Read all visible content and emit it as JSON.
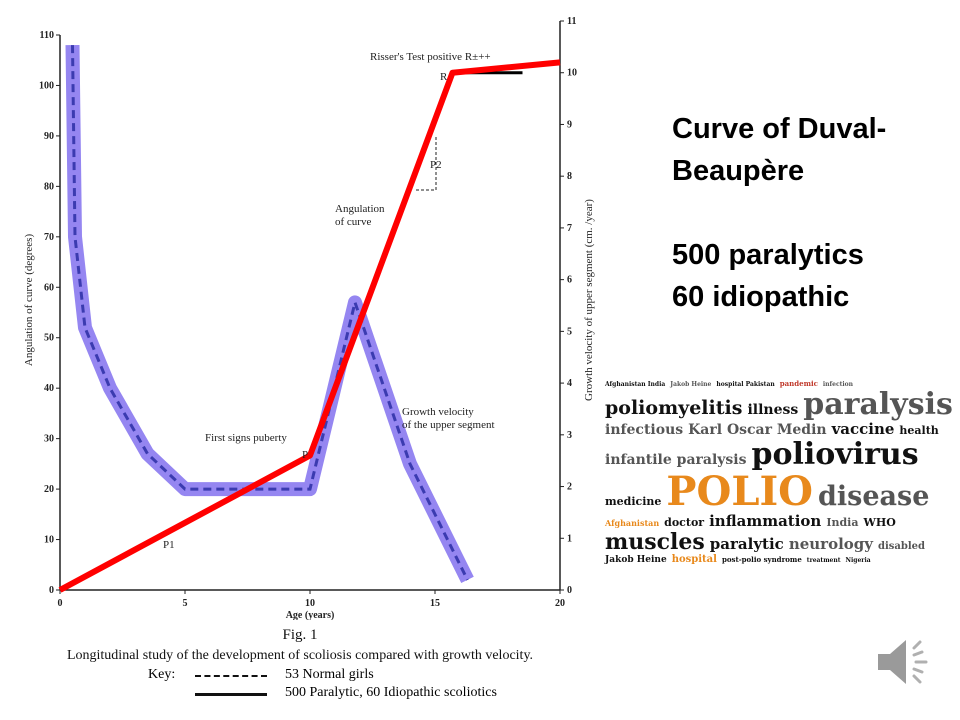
{
  "slide": {
    "title_lines": [
      "Curve of Duval-",
      "Beaupère"
    ],
    "stats_lines": [
      "500 paralytics",
      "60 idiopathic"
    ]
  },
  "chart_data": {
    "type": "line",
    "xlabel": "Age (years)",
    "ylabel_left": "Angulation of curve (degrees)",
    "ylabel_right": "Growth velocity of upper segment (cm. /year)",
    "xlim": [
      0,
      20
    ],
    "ylim_left": [
      0,
      110
    ],
    "ylim_right": [
      0,
      11
    ],
    "x_ticks": [
      "0",
      "5",
      "10",
      "15",
      "20"
    ],
    "y_left_ticks": [
      "0",
      "10",
      "20",
      "30",
      "40",
      "50",
      "60",
      "70",
      "80",
      "90",
      "100",
      "110"
    ],
    "y_right_ticks": [
      "0",
      "1",
      "2",
      "3",
      "4",
      "5",
      "6",
      "7",
      "8",
      "9",
      "10",
      "11"
    ],
    "series": [
      {
        "name": "53 Normal girls (angulation, dashed)",
        "axis": "left",
        "color": "#7b68ee",
        "x": [
          0.5,
          0.6,
          1,
          2,
          3.5,
          5,
          10,
          11.8,
          14,
          16.3
        ],
        "y": [
          108,
          70,
          52,
          40,
          27,
          20,
          20,
          57,
          25,
          2
        ]
      },
      {
        "name": "Growth velocity (red overlay)",
        "axis": "right",
        "color": "#ff0000",
        "x": [
          0,
          10,
          15.7,
          20
        ],
        "y": [
          0,
          2.6,
          10,
          10.2
        ]
      },
      {
        "name": "500 Paralytic, 60 Idiopathic scoliotics (solid)",
        "axis": "right",
        "color": "#000000",
        "x": [
          15.7,
          18.5
        ],
        "y": [
          10,
          10
        ]
      }
    ],
    "annotations": {
      "risser": "Risser's Test positive R±++",
      "r": "R",
      "p2": "P2",
      "angulation_1": "Angulation",
      "angulation_2": "of curve",
      "puberty": "First signs puberty",
      "p": "P",
      "p1": "P1",
      "growth_1": "Growth velocity",
      "growth_2": "of the upper segment"
    },
    "fig_label": "Fig. 1",
    "caption": "Longitudinal study of the development of scoliosis compared with growth velocity.",
    "key_label": "Key:",
    "legend": [
      "53 Normal girls",
      "500 Paralytic, 60 Idiopathic scoliotics"
    ]
  },
  "word_cloud": {
    "words": [
      "Afghanistan India",
      "Jakob Heine",
      "poliomyelitis",
      "hospital Pakistan",
      "illness",
      "paralysis",
      "infectious",
      "Karl Oscar Medin",
      "pandemic",
      "vaccine",
      "health",
      "infantile paralysis",
      "poliovirus",
      "medicine",
      "POLIO",
      "disease",
      "Afghanistan",
      "doctor",
      "inflammation",
      "India",
      "WHO",
      "muscles",
      "paralytic",
      "neurology",
      "disabled",
      "Jakob Heine",
      "hospital",
      "post-polio syndrome",
      "infection",
      "treatment",
      "Nigeria"
    ]
  },
  "audio": {
    "icon": "speaker-icon"
  }
}
